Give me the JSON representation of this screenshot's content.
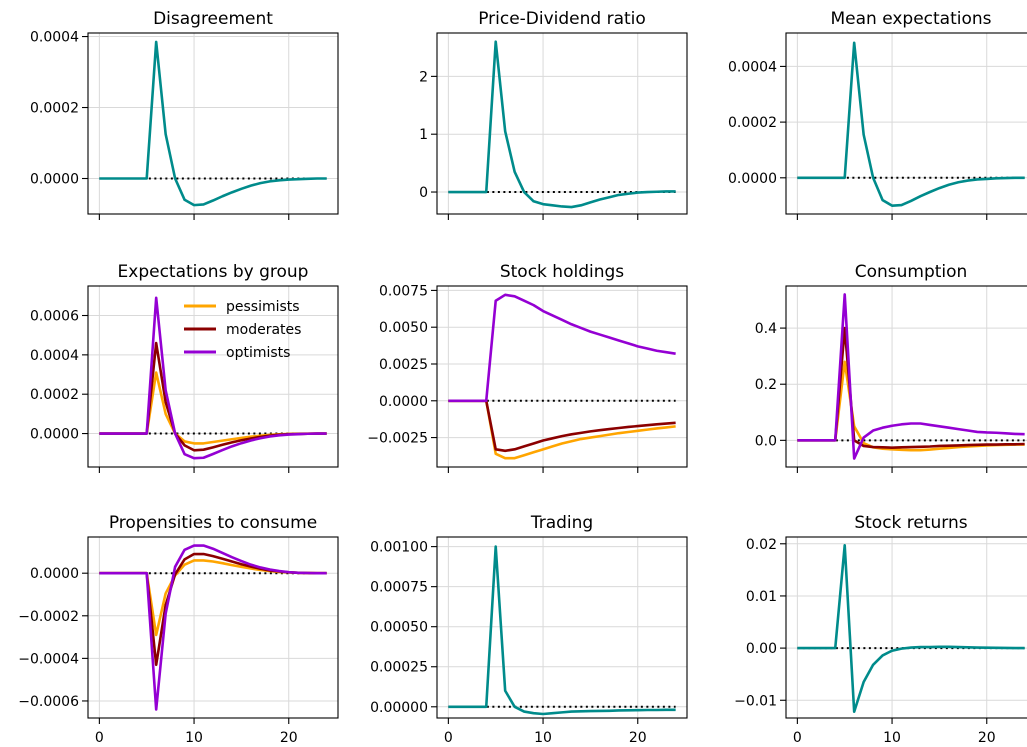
{
  "colors": {
    "single": "#008b8b",
    "pessimists": "#ffa500",
    "moderates": "#8b0000",
    "optimists": "#9400d3"
  },
  "chart_data": [
    {
      "type": "line",
      "title": "Disagreement",
      "xticks": [
        "0",
        "10",
        "20"
      ],
      "xtick_values": [
        0,
        10,
        20
      ],
      "show_xticklabels": false,
      "xlim": [
        -1.2,
        25.2
      ],
      "yticks": [
        "0.0000",
        "0.0002",
        "0.0004"
      ],
      "ytick_values": [
        0,
        0.0002,
        0.0004
      ],
      "ylim": [
        -0.0001,
        0.00041
      ],
      "grid": true,
      "zero_line": true,
      "x": [
        0,
        1,
        2,
        3,
        4,
        5,
        6,
        7,
        8,
        9,
        10,
        11,
        12,
        13,
        14,
        15,
        16,
        17,
        18,
        19,
        20,
        21,
        22,
        23,
        24
      ],
      "series": [
        {
          "color_key": "single",
          "values": [
            0,
            0,
            0,
            0,
            0,
            0,
            0.000385,
            0.000125,
            0.0,
            -6e-05,
            -7.5e-05,
            -7.3e-05,
            -6.2e-05,
            -5e-05,
            -3.9e-05,
            -2.9e-05,
            -2e-05,
            -1.3e-05,
            -8e-06,
            -5e-06,
            -3e-06,
            -2e-06,
            -1e-06,
            0,
            0
          ]
        }
      ]
    },
    {
      "type": "line",
      "title": "Price-Dividend ratio",
      "xticks": [
        "0",
        "10",
        "20"
      ],
      "xtick_values": [
        0,
        10,
        20
      ],
      "show_xticklabels": false,
      "xlim": [
        -1.2,
        25.2
      ],
      "yticks": [
        "0",
        "1",
        "2"
      ],
      "ytick_values": [
        0,
        1,
        2
      ],
      "ylim": [
        -0.38,
        2.75
      ],
      "grid": true,
      "zero_line": true,
      "x": [
        0,
        1,
        2,
        3,
        4,
        5,
        6,
        7,
        8,
        9,
        10,
        11,
        12,
        13,
        14,
        15,
        16,
        17,
        18,
        19,
        20,
        21,
        22,
        23,
        24
      ],
      "series": [
        {
          "color_key": "single",
          "values": [
            0,
            0,
            0,
            0,
            0,
            2.6,
            1.05,
            0.35,
            0.0,
            -0.16,
            -0.21,
            -0.23,
            -0.25,
            -0.26,
            -0.23,
            -0.18,
            -0.13,
            -0.09,
            -0.05,
            -0.03,
            -0.01,
            0.0,
            0.005,
            0.01,
            0.01
          ]
        }
      ]
    },
    {
      "type": "line",
      "title": "Mean expectations",
      "xticks": [
        "0",
        "10",
        "20"
      ],
      "xtick_values": [
        0,
        10,
        20
      ],
      "show_xticklabels": false,
      "xlim": [
        -1.2,
        25.2
      ],
      "yticks": [
        "0.0000",
        "0.0002",
        "0.0004"
      ],
      "ytick_values": [
        0,
        0.0002,
        0.0004
      ],
      "ylim": [
        -0.00013,
        0.00052
      ],
      "grid": true,
      "zero_line": true,
      "x": [
        0,
        1,
        2,
        3,
        4,
        5,
        6,
        7,
        8,
        9,
        10,
        11,
        12,
        13,
        14,
        15,
        16,
        17,
        18,
        19,
        20,
        21,
        22,
        23,
        24
      ],
      "series": [
        {
          "color_key": "single",
          "values": [
            0,
            0,
            0,
            0,
            0,
            0,
            0.000485,
            0.000155,
            0.0,
            -8e-05,
            -0.0001,
            -9.8e-05,
            -8.3e-05,
            -6.6e-05,
            -5.1e-05,
            -3.7e-05,
            -2.5e-05,
            -1.6e-05,
            -1e-05,
            -6e-06,
            -4e-06,
            -2e-06,
            -1e-06,
            0,
            0
          ]
        }
      ]
    },
    {
      "type": "line",
      "title": "Expectations by group",
      "xticks": [
        "0",
        "10",
        "20"
      ],
      "xtick_values": [
        0,
        10,
        20
      ],
      "show_xticklabels": false,
      "xlim": [
        -1.2,
        25.2
      ],
      "yticks": [
        "0.0000",
        "0.0002",
        "0.0004",
        "0.0006"
      ],
      "ytick_values": [
        0,
        0.0002,
        0.0004,
        0.0006
      ],
      "ylim": [
        -0.00017,
        0.00075
      ],
      "grid": true,
      "zero_line": true,
      "legend": {
        "position": "upper right",
        "entries": [
          "pessimists",
          "moderates",
          "optimists"
        ]
      },
      "x": [
        0,
        1,
        2,
        3,
        4,
        5,
        6,
        7,
        8,
        9,
        10,
        11,
        12,
        13,
        14,
        15,
        16,
        17,
        18,
        19,
        20,
        21,
        22,
        23,
        24
      ],
      "series": [
        {
          "name": "pessimists",
          "color_key": "pessimists",
          "values": [
            0,
            0,
            0,
            0,
            0,
            0,
            0.00031,
            0.0001,
            0.0,
            -4e-05,
            -5e-05,
            -5e-05,
            -4.3e-05,
            -3.6e-05,
            -2.9e-05,
            -2.2e-05,
            -1.6e-05,
            -1.1e-05,
            -7e-06,
            -4e-06,
            -2e-06,
            -1e-06,
            0,
            0,
            0
          ]
        },
        {
          "name": "moderates",
          "color_key": "moderates",
          "values": [
            0,
            0,
            0,
            0,
            0,
            0,
            0.00046,
            0.00016,
            0.0,
            -6e-05,
            -8.5e-05,
            -8.2e-05,
            -7e-05,
            -5.7e-05,
            -4.5e-05,
            -3.4e-05,
            -2.5e-05,
            -1.7e-05,
            -1.1e-05,
            -6e-06,
            -3e-06,
            -2e-06,
            -1e-06,
            0,
            0
          ]
        },
        {
          "name": "optimists",
          "color_key": "optimists",
          "values": [
            0,
            0,
            0,
            0,
            0,
            0,
            0.00069,
            0.00022,
            0.0,
            -0.000105,
            -0.000125,
            -0.000123,
            -0.000104,
            -8.4e-05,
            -6.5e-05,
            -4.9e-05,
            -3.5e-05,
            -2.4e-05,
            -1.5e-05,
            -9e-06,
            -5e-06,
            -3e-06,
            -1e-06,
            0,
            0
          ]
        }
      ]
    },
    {
      "type": "line",
      "title": "Stock holdings",
      "xticks": [
        "0",
        "10",
        "20"
      ],
      "xtick_values": [
        0,
        10,
        20
      ],
      "show_xticklabels": false,
      "xlim": [
        -1.2,
        25.2
      ],
      "yticks": [
        "−0.0025",
        "0.0000",
        "0.0025",
        "0.0050",
        "0.0075"
      ],
      "ytick_values": [
        -0.0025,
        0,
        0.0025,
        0.005,
        0.0075
      ],
      "ylim": [
        -0.0045,
        0.0078
      ],
      "grid": true,
      "zero_line": true,
      "x": [
        0,
        1,
        2,
        3,
        4,
        5,
        6,
        7,
        8,
        9,
        10,
        11,
        12,
        13,
        14,
        15,
        16,
        17,
        18,
        19,
        20,
        21,
        22,
        23,
        24
      ],
      "series": [
        {
          "name": "pessimists",
          "color_key": "pessimists",
          "values": [
            0,
            0,
            0,
            0,
            0,
            -0.0036,
            -0.0039,
            -0.0039,
            -0.0037,
            -0.0035,
            -0.0033,
            -0.0031,
            -0.0029,
            -0.00275,
            -0.0026,
            -0.0025,
            -0.0024,
            -0.0023,
            -0.0022,
            -0.00212,
            -0.00204,
            -0.00196,
            -0.00188,
            -0.00181,
            -0.00174
          ]
        },
        {
          "name": "moderates",
          "color_key": "moderates",
          "values": [
            0,
            0,
            0,
            0,
            0,
            -0.0033,
            -0.0034,
            -0.0033,
            -0.0031,
            -0.0029,
            -0.0027,
            -0.00255,
            -0.0024,
            -0.00228,
            -0.00218,
            -0.00208,
            -0.002,
            -0.00192,
            -0.00185,
            -0.00178,
            -0.00172,
            -0.00166,
            -0.0016,
            -0.00155,
            -0.0015
          ]
        },
        {
          "name": "optimists",
          "color_key": "optimists",
          "values": [
            0,
            0,
            0,
            0,
            0,
            0.0068,
            0.0072,
            0.0071,
            0.0068,
            0.0065,
            0.0061,
            0.0058,
            0.0055,
            0.0052,
            0.00495,
            0.0047,
            0.0045,
            0.0043,
            0.0041,
            0.0039,
            0.0037,
            0.00355,
            0.0034,
            0.0033,
            0.0032
          ]
        }
      ]
    },
    {
      "type": "line",
      "title": "Consumption",
      "xticks": [
        "0",
        "10",
        "20"
      ],
      "xtick_values": [
        0,
        10,
        20
      ],
      "show_xticklabels": false,
      "xlim": [
        -1.2,
        25.2
      ],
      "yticks": [
        "0.0",
        "0.2",
        "0.4"
      ],
      "ytick_values": [
        0,
        0.2,
        0.4
      ],
      "ylim": [
        -0.095,
        0.55
      ],
      "grid": true,
      "zero_line": true,
      "x": [
        0,
        1,
        2,
        3,
        4,
        5,
        6,
        7,
        8,
        9,
        10,
        11,
        12,
        13,
        14,
        15,
        16,
        17,
        18,
        19,
        20,
        21,
        22,
        23,
        24
      ],
      "series": [
        {
          "name": "pessimists",
          "color_key": "pessimists",
          "values": [
            0,
            0,
            0,
            0,
            0,
            0.28,
            0.05,
            -0.01,
            -0.025,
            -0.03,
            -0.032,
            -0.034,
            -0.035,
            -0.035,
            -0.033,
            -0.03,
            -0.027,
            -0.024,
            -0.022,
            -0.02,
            -0.018,
            -0.017,
            -0.016,
            -0.015,
            -0.015
          ]
        },
        {
          "name": "moderates",
          "color_key": "moderates",
          "values": [
            0,
            0,
            0,
            0,
            0,
            0.4,
            0.0,
            -0.02,
            -0.024,
            -0.025,
            -0.026,
            -0.025,
            -0.024,
            -0.023,
            -0.022,
            -0.02,
            -0.019,
            -0.018,
            -0.017,
            -0.016,
            -0.015,
            -0.015,
            -0.014,
            -0.014,
            -0.013
          ]
        },
        {
          "name": "optimists",
          "color_key": "optimists",
          "values": [
            0,
            0,
            0,
            0,
            0,
            0.52,
            -0.065,
            0.01,
            0.035,
            0.045,
            0.052,
            0.057,
            0.06,
            0.06,
            0.055,
            0.05,
            0.045,
            0.04,
            0.035,
            0.03,
            0.028,
            0.027,
            0.025,
            0.023,
            0.022
          ]
        }
      ]
    },
    {
      "type": "line",
      "title": "Propensities to consume",
      "xticks": [
        "0",
        "10",
        "20"
      ],
      "xtick_values": [
        0,
        10,
        20
      ],
      "show_xticklabels": true,
      "xlim": [
        -1.2,
        25.2
      ],
      "yticks": [
        "−0.0006",
        "−0.0004",
        "−0.0002",
        "0.0000"
      ],
      "ytick_values": [
        -0.0006,
        -0.0004,
        -0.0002,
        0
      ],
      "ylim": [
        -0.00068,
        0.00017
      ],
      "grid": true,
      "zero_line": true,
      "x": [
        0,
        1,
        2,
        3,
        4,
        5,
        6,
        7,
        8,
        9,
        10,
        11,
        12,
        13,
        14,
        15,
        16,
        17,
        18,
        19,
        20,
        21,
        22,
        23,
        24
      ],
      "series": [
        {
          "name": "pessimists",
          "color_key": "pessimists",
          "values": [
            0,
            0,
            0,
            0,
            0,
            0,
            -0.00029,
            -9.5e-05,
            -1e-05,
            4e-05,
            6e-05,
            6e-05,
            5.5e-05,
            4.7e-05,
            3.8e-05,
            3e-05,
            2.2e-05,
            1.5e-05,
            1e-05,
            6e-06,
            4e-06,
            2e-06,
            1e-06,
            0,
            0
          ]
        },
        {
          "name": "moderates",
          "color_key": "moderates",
          "values": [
            0,
            0,
            0,
            0,
            0,
            0,
            -0.00043,
            -0.00015,
            -5e-06,
            6.5e-05,
            9e-05,
            9e-05,
            8e-05,
            6.8e-05,
            5.5e-05,
            4.2e-05,
            3.1e-05,
            2.1e-05,
            1.3e-05,
            8e-06,
            4e-06,
            2e-06,
            1e-06,
            0,
            0
          ]
        },
        {
          "name": "optimists",
          "color_key": "optimists",
          "values": [
            0,
            0,
            0,
            0,
            0,
            0,
            -0.00064,
            -0.00019,
            3e-05,
            0.00011,
            0.00013,
            0.00013,
            0.000115,
            9.5e-05,
            7.5e-05,
            5.7e-05,
            4e-05,
            2.7e-05,
            1.7e-05,
            1e-05,
            5e-06,
            2e-06,
            1e-06,
            0,
            0
          ]
        }
      ]
    },
    {
      "type": "line",
      "title": "Trading",
      "xticks": [
        "0",
        "10",
        "20"
      ],
      "xtick_values": [
        0,
        10,
        20
      ],
      "show_xticklabels": true,
      "xlim": [
        -1.2,
        25.2
      ],
      "yticks": [
        "0.00000",
        "0.00025",
        "0.00050",
        "0.00075",
        "0.00100"
      ],
      "ytick_values": [
        0,
        0.00025,
        0.0005,
        0.00075,
        0.001
      ],
      "ylim": [
        -7e-05,
        0.00106
      ],
      "grid": true,
      "zero_line": true,
      "x": [
        0,
        1,
        2,
        3,
        4,
        5,
        6,
        7,
        8,
        9,
        10,
        11,
        12,
        13,
        14,
        15,
        16,
        17,
        18,
        19,
        20,
        21,
        22,
        23,
        24
      ],
      "series": [
        {
          "color_key": "single",
          "values": [
            0,
            0,
            0,
            0,
            0,
            0.001,
            0.0001,
            0.0,
            -3e-05,
            -4e-05,
            -4.5e-05,
            -4e-05,
            -3.5e-05,
            -3e-05,
            -2.8e-05,
            -2.7e-05,
            -2.6e-05,
            -2.5e-05,
            -2.3e-05,
            -2.2e-05,
            -2.1e-05,
            -2e-05,
            -2e-05,
            -1.9e-05,
            -1.9e-05
          ]
        }
      ]
    },
    {
      "type": "line",
      "title": "Stock returns",
      "xticks": [
        "0",
        "10",
        "20"
      ],
      "xtick_values": [
        0,
        10,
        20
      ],
      "show_xticklabels": true,
      "xlim": [
        -1.2,
        25.2
      ],
      "yticks": [
        "−0.01",
        "0.00",
        "0.01",
        "0.02"
      ],
      "ytick_values": [
        -0.01,
        0,
        0.01,
        0.02
      ],
      "ylim": [
        -0.0134,
        0.0213
      ],
      "grid": true,
      "zero_line": true,
      "x": [
        0,
        1,
        2,
        3,
        4,
        5,
        6,
        7,
        8,
        9,
        10,
        11,
        12,
        13,
        14,
        15,
        16,
        17,
        18,
        19,
        20,
        21,
        22,
        23,
        24
      ],
      "series": [
        {
          "color_key": "single",
          "values": [
            0,
            0,
            0,
            0,
            0,
            0.0197,
            -0.0122,
            -0.0065,
            -0.0032,
            -0.0014,
            -0.0005,
            -0.0001,
            0.0001,
            0.0002,
            0.0002,
            0.00025,
            0.00025,
            0.0002,
            0.00015,
            0.0001,
            8e-05,
            5e-05,
            3e-05,
            1e-05,
            0
          ]
        }
      ]
    }
  ]
}
